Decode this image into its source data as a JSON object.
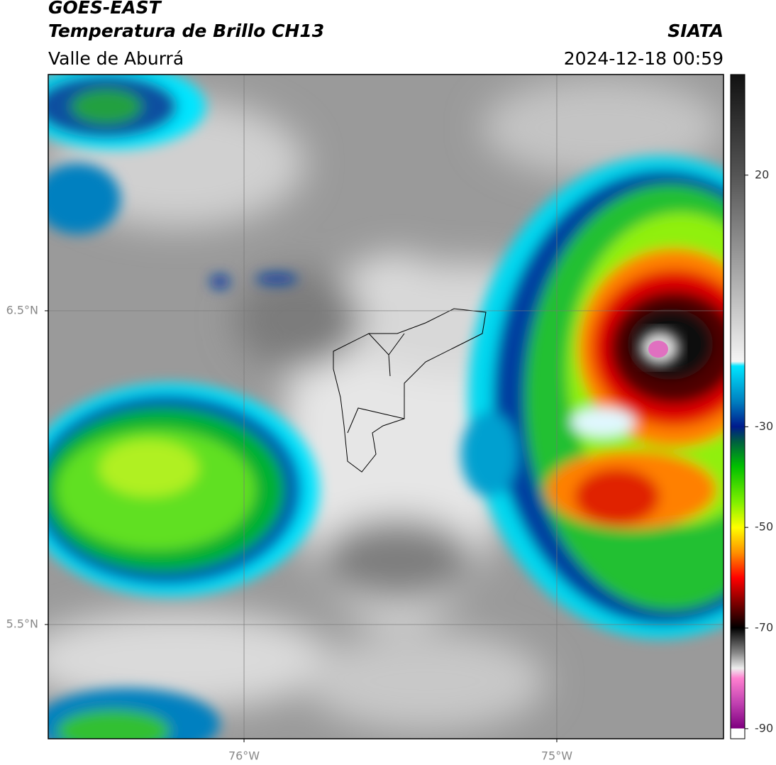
{
  "header": {
    "title": "GOES-EAST",
    "subtitle": "Temperatura de Brillo CH13",
    "region": "Valle de Aburrá",
    "source": "SIATA",
    "timestamp": "2024-12-18 00:59"
  },
  "map": {
    "xlim": [
      -76.626,
      -74.467
    ],
    "ylim": [
      5.136,
      7.253
    ],
    "xticks": [
      {
        "value": -76,
        "label": "76°W"
      },
      {
        "value": -75,
        "label": "75°W"
      }
    ],
    "yticks": [
      {
        "value": 6.5,
        "label": "6.5°N"
      },
      {
        "value": 5.5,
        "label": "5.5°N"
      }
    ],
    "grid": true
  },
  "colorbar": {
    "lim": [
      -92,
      40
    ],
    "ticks": [
      20,
      -30,
      -50,
      -70,
      -90
    ]
  }
}
